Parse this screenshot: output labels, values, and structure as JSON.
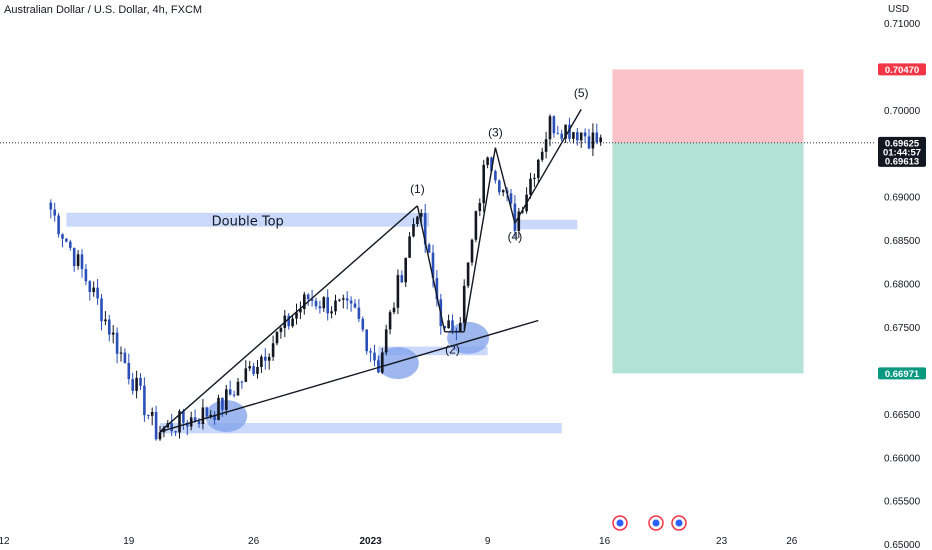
{
  "header": {
    "title": "Australian Dollar / U.S. Dollar, 4h, FXCM"
  },
  "colors": {
    "bull": "#131722",
    "bear": "#2a4fb8",
    "zone": "#c9d8fb",
    "circle": "#7ea0ea",
    "stop_zone": "#f9c3c7",
    "target_zone": "#b2e1d6",
    "stop_badge": "#f23645",
    "target_badge": "#089981",
    "price_badge": "#131722"
  },
  "chart_data": {
    "type": "candlestick",
    "y_axis": {
      "unit_label": "USD",
      "range": [
        0.6495,
        0.712
      ],
      "ticks": [
        "0.71000",
        "0.70500",
        "0.70000",
        "0.69500",
        "0.69000",
        "0.68500",
        "0.68000",
        "0.67500",
        "0.67000",
        "0.66500",
        "0.66000",
        "0.65500",
        "0.65000"
      ],
      "tick_values": [
        0.71,
        0.705,
        0.7,
        0.695,
        0.69,
        0.685,
        0.68,
        0.675,
        0.67,
        0.665,
        0.66,
        0.655,
        0.65
      ]
    },
    "x_axis": {
      "ticks": [
        "12",
        "19",
        "26",
        "2023",
        "9",
        "16",
        "23",
        "26"
      ],
      "tick_bars": [
        0,
        32,
        64,
        94,
        124,
        154,
        184,
        202
      ]
    },
    "key_points": [
      {
        "bar": 12,
        "price": 0.6886
      },
      {
        "bar": 24,
        "price": 0.6779
      },
      {
        "bar": 39,
        "price": 0.663
      },
      {
        "bar": 55,
        "price": 0.6657
      },
      {
        "bar": 78,
        "price": 0.6784
      },
      {
        "bar": 90,
        "price": 0.6766
      },
      {
        "bar": 96,
        "price": 0.6706
      },
      {
        "bar": 106,
        "price": 0.6889
      },
      {
        "bar": 113,
        "price": 0.6741
      },
      {
        "bar": 117,
        "price": 0.6765
      },
      {
        "bar": 124,
        "price": 0.6955
      },
      {
        "bar": 131,
        "price": 0.6871
      },
      {
        "bar": 140,
        "price": 0.6985
      },
      {
        "bar": 148,
        "price": 0.6975
      },
      {
        "bar": 153,
        "price": 0.6962
      }
    ],
    "levels": {
      "current": 0.69625,
      "countdown": "01:44:57",
      "bid": 0.69613,
      "stop": 0.7047,
      "target": 0.66971
    },
    "price_labels": {
      "current": "0.69625",
      "bid": "0.69613",
      "stop": "0.70470",
      "target": "0.66971"
    },
    "zones": [
      {
        "label": "Double Top",
        "bar_start": 16,
        "bar_end": 109,
        "p_high": 0.6882,
        "p_low": 0.6866
      },
      {
        "bar_start": 40,
        "bar_end": 143,
        "p_high": 0.664,
        "p_low": 0.6628
      },
      {
        "bar_start": 96,
        "bar_end": 124,
        "p_high": 0.6728,
        "p_low": 0.6718
      },
      {
        "bar_start": 131,
        "bar_end": 147,
        "p_high": 0.6874,
        "p_low": 0.6863
      }
    ],
    "risk_reward": {
      "bar_start": 156,
      "bar_end": 205,
      "entry": 0.69625,
      "stop": 0.7047,
      "target": 0.66971
    },
    "trendlines": [
      {
        "from": {
          "bar": 40,
          "price": 0.663
        },
        "to": {
          "bar": 106,
          "price": 0.689
        }
      },
      {
        "from": {
          "bar": 40,
          "price": 0.663
        },
        "to": {
          "bar": 137,
          "price": 0.6758
        }
      },
      {
        "from": {
          "bar": 106,
          "price": 0.689
        },
        "to": {
          "bar": 113,
          "price": 0.6745
        }
      },
      {
        "from": {
          "bar": 113,
          "price": 0.6745
        },
        "to": {
          "bar": 118,
          "price": 0.6745
        }
      },
      {
        "from": {
          "bar": 118,
          "price": 0.6745
        },
        "to": {
          "bar": 126,
          "price": 0.6957
        }
      },
      {
        "from": {
          "bar": 126,
          "price": 0.6957
        },
        "to": {
          "bar": 131,
          "price": 0.687
        }
      },
      {
        "from": {
          "bar": 131,
          "price": 0.687
        },
        "to": {
          "bar": 148,
          "price": 0.7001
        }
      }
    ],
    "wave_labels": [
      {
        "text": "(1)",
        "bar": 106,
        "price": 0.6905
      },
      {
        "text": "(2)",
        "bar": 115,
        "price": 0.672
      },
      {
        "text": "(3)",
        "bar": 126,
        "price": 0.697
      },
      {
        "text": "(4)",
        "bar": 131,
        "price": 0.685
      },
      {
        "text": "(5)",
        "bar": 148,
        "price": 0.7015
      }
    ],
    "circles": [
      {
        "bar": 57,
        "price": 0.6648
      },
      {
        "bar": 101,
        "price": 0.6709
      },
      {
        "bar": 119,
        "price": 0.6738
      }
    ]
  }
}
